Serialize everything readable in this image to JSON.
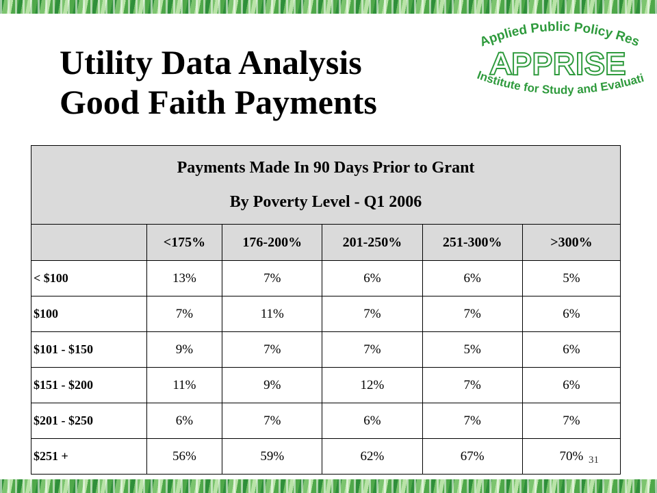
{
  "slide": {
    "title_line1": "Utility Data Analysis",
    "title_line2": "Good Faith Payments",
    "page_number": "31"
  },
  "logo": {
    "top_text": "Applied Public Policy Research",
    "name": "APPRISE",
    "bottom_text": "Institute for Study and Evaluation",
    "color": "#2e9a3c"
  },
  "table": {
    "header_line1": "Payments Made In 90 Days Prior to Grant",
    "header_line2": "By Poverty Level - Q1 2006",
    "columns": [
      "<175%",
      "176-200%",
      "201-250%",
      "251-300%",
      ">300%"
    ],
    "rows": [
      {
        "label": "< $100",
        "values": [
          "13%",
          "7%",
          "6%",
          "6%",
          "5%"
        ]
      },
      {
        "label": "$100",
        "values": [
          "7%",
          "11%",
          "7%",
          "7%",
          "6%"
        ]
      },
      {
        "label": "$101 - $150",
        "values": [
          "9%",
          "7%",
          "7%",
          "5%",
          "6%"
        ]
      },
      {
        "label": "$151 - $200",
        "values": [
          "11%",
          "9%",
          "12%",
          "7%",
          "6%"
        ]
      },
      {
        "label": "$201 - $250",
        "values": [
          "6%",
          "7%",
          "6%",
          "7%",
          "7%"
        ]
      },
      {
        "label": "$251 +",
        "values": [
          "56%",
          "59%",
          "62%",
          "67%",
          "70%"
        ]
      }
    ]
  }
}
